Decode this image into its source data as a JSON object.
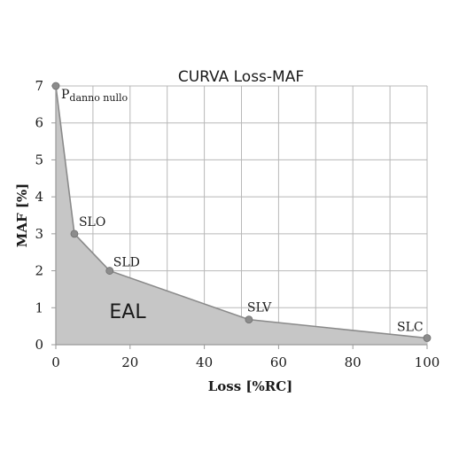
{
  "chart_data": {
    "type": "area",
    "title": "CURVA Loss-MAF",
    "xlabel": "Loss [%RC]",
    "ylabel": "MAF [%]",
    "xlim": [
      0,
      100
    ],
    "ylim": [
      0,
      7
    ],
    "x_ticks": [
      0,
      20,
      40,
      60,
      80,
      100
    ],
    "y_ticks": [
      0,
      1,
      2,
      3,
      4,
      5,
      6,
      7
    ],
    "x_tick_labels": [
      "0",
      "20",
      "40",
      "60",
      "80",
      "100"
    ],
    "y_tick_labels": [
      "0",
      "1",
      "2",
      "3",
      "4",
      "5",
      "6",
      "7"
    ],
    "grid": true,
    "series": [
      {
        "points": [
          {
            "x": 0,
            "y": 7.0,
            "label": "P",
            "label_sub": "danno nullo"
          },
          {
            "x": 5,
            "y": 3.0,
            "label": "SLO"
          },
          {
            "x": 14.5,
            "y": 2.0,
            "label": "SLD"
          },
          {
            "x": 52,
            "y": 0.68,
            "label": "SLV"
          },
          {
            "x": 100,
            "y": 0.18,
            "label": "SLC"
          }
        ]
      }
    ],
    "area_annotation": "EAL",
    "colors": {
      "fill": "#c6c6c6",
      "line": "#8a8a8a",
      "marker": "#8c8c8c",
      "grid": "#b8b8b8",
      "axis": "#9a9a9a"
    }
  }
}
